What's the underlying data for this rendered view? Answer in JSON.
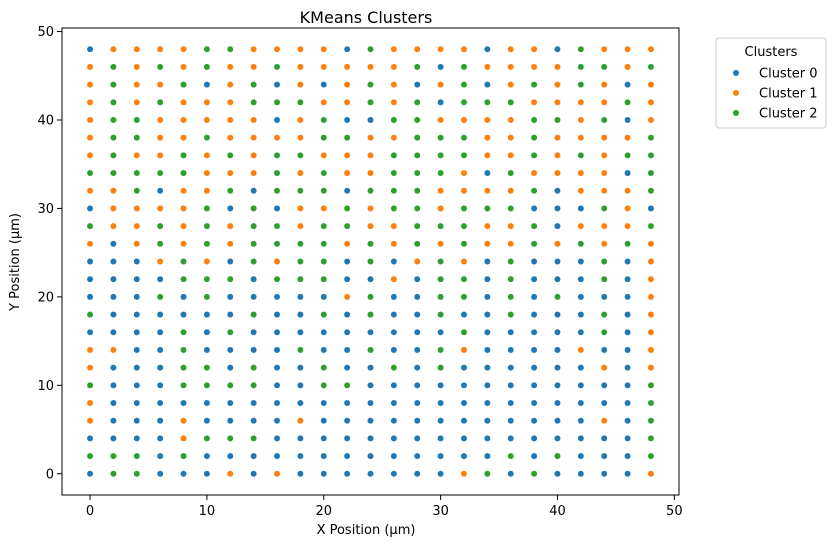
{
  "chart_data": {
    "type": "scatter",
    "title": "KMeans Clusters",
    "xlabel": "X Position (µm)",
    "ylabel": "Y Position (µm)",
    "xlim": [
      -2.4,
      50.4
    ],
    "ylim": [
      -2.4,
      50.4
    ],
    "xticks": [
      0,
      10,
      20,
      30,
      40,
      50
    ],
    "yticks": [
      0,
      10,
      20,
      30,
      40,
      50
    ],
    "grid": false,
    "legend": {
      "title": "Clusters",
      "placement": "outside-top-right"
    },
    "grid_points": {
      "x": [
        0,
        2,
        4,
        6,
        8,
        10,
        12,
        14,
        16,
        18,
        20,
        22,
        24,
        26,
        28,
        30,
        32,
        34,
        36,
        38,
        40,
        42,
        44,
        46,
        48
      ],
      "y": [
        48,
        46,
        44,
        42,
        40,
        38,
        36,
        34,
        32,
        30,
        28,
        26,
        24,
        22,
        20,
        18,
        16,
        14,
        12,
        10,
        8,
        6,
        4,
        2,
        0
      ]
    },
    "series": [
      {
        "name": "Cluster 0",
        "color": "#1f77b4"
      },
      {
        "name": "Cluster 1",
        "color": "#ff7f0e"
      },
      {
        "name": "Cluster 2",
        "color": "#2ca02c"
      }
    ],
    "cluster_rows": [
      "0111122111102111101102111",
      "1212121121111120211112212",
      "1211201201012101201212101",
      "1212111222112120222111121",
      "1221111101200221111221201",
      "1221121111221122211211112",
      "1211212122111222211212122",
      "2222211121211222102111102",
      "1120112022202221111201112",
      "0111120201121221222000210",
      "2112121221221122211201112",
      "1012121222212121211212121",
      "0001210212202012102000201",
      "0000222022200102202000201",
      "0002020000012002202020001",
      "2000000200202002002000201",
      "0000202000000000200000201",
      "1100200002002002100001001",
      "1000220200200202000000101",
      "2000222200220000000000002",
      "1000000000000000000000002",
      "1000100001000000000000102",
      "0000122200000000000000002",
      "2220200000000000002020002",
      "0220001010000000120200001"
    ]
  }
}
